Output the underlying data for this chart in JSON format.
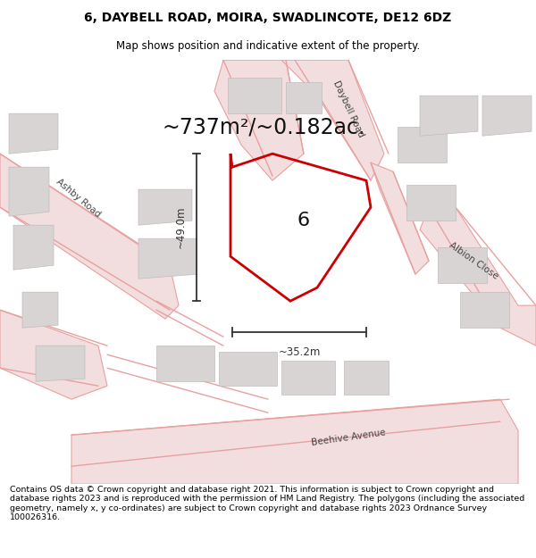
{
  "title_line1": "6, DAYBELL ROAD, MOIRA, SWADLINCOTE, DE12 6DZ",
  "title_line2": "Map shows position and indicative extent of the property.",
  "area_text": "~737m²/~0.182ac.",
  "label_6": "6",
  "dim_vertical": "~49.0m",
  "dim_horizontal": "~35.2m",
  "road_label_ashby": "Ashby Road",
  "road_label_daybell": "Daybell Road",
  "road_label_albion": "Albion Close",
  "road_label_beehive": "Beehive Avenue",
  "footer_text": "Contains OS data © Crown copyright and database right 2021. This information is subject to Crown copyright and database rights 2023 and is reproduced with the permission of HM Land Registry. The polygons (including the associated geometry, namely x, y co-ordinates) are subject to Crown copyright and database rights 2023 Ordnance Survey 100026316.",
  "map_bg": "#ffffff",
  "road_fill": "#f2dede",
  "road_edge": "#e8a0a0",
  "road_line": "#e8a0a0",
  "building_fill": "#d8d4d4",
  "building_edge": "#c0bcbc",
  "plot_color": "#cc0000",
  "dim_color": "#333333",
  "text_color": "#444444",
  "title_fontsize": 10,
  "subtitle_fontsize": 8.5,
  "area_fontsize": 17,
  "label_fontsize": 16,
  "dim_fontsize": 8.5,
  "road_label_fontsize": 7.5,
  "footer_fontsize": 6.8
}
